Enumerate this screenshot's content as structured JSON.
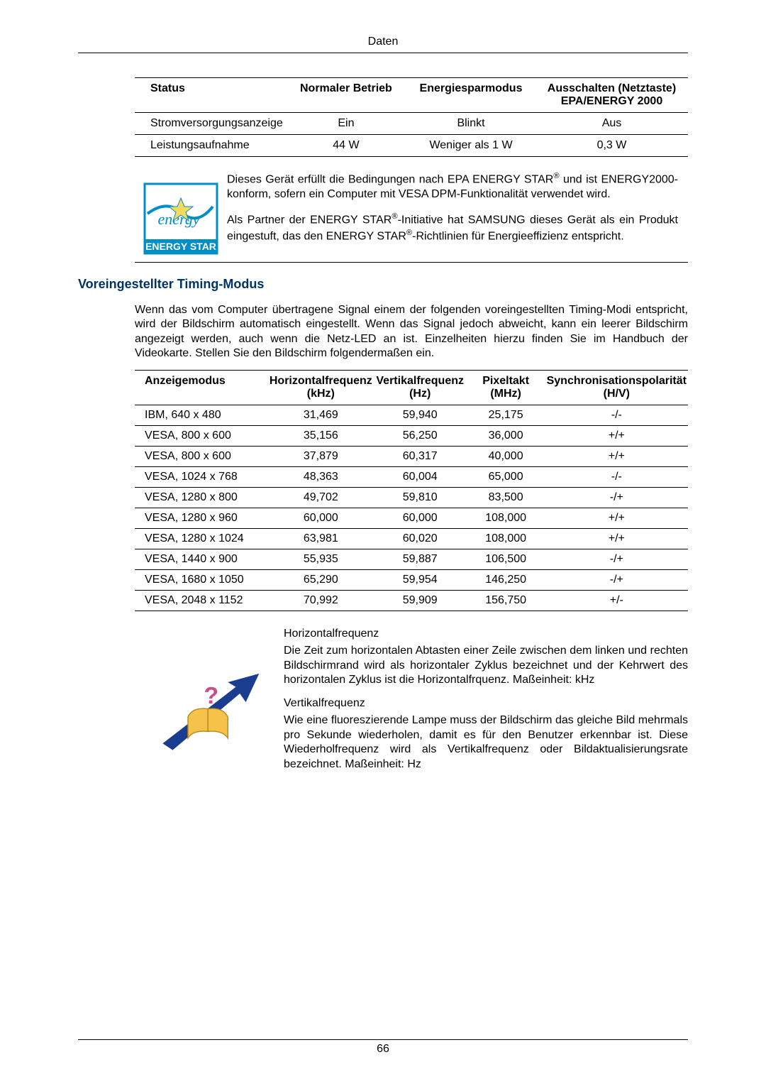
{
  "header": {
    "title": "Daten"
  },
  "status_table": {
    "headers": [
      "Status",
      "Normaler Betrieb",
      "Energiesparmodus",
      "Ausschalten (Netztaste) EPA/ENERGY 2000"
    ],
    "rows": [
      {
        "label": "Stromversorgungsanzeige",
        "normal": "Ein",
        "power_save": "Blinkt",
        "off": "Aus"
      },
      {
        "label": "Leistungsaufnahme",
        "normal": "44 W",
        "power_save": "Weniger als 1 W",
        "off": "0,3 W"
      }
    ]
  },
  "info": {
    "p1_pre": "Dieses Gerät erfüllt die Bedingungen nach EPA ENERGY STAR",
    "p1_post": " und ist ENERGY2000-konform, sofern ein Computer mit VESA DPM-Funktionalität verwendet wird.",
    "p2_pre": "Als Partner der ENERGY STAR",
    "p2_mid": "-Initiative hat SAMSUNG dieses Gerät als ein Produkt eingestuft, das den ENERGY STAR",
    "p2_post": "-Richtlinien für Energieeffizienz entspricht."
  },
  "badge": {
    "script_text": "energy",
    "block_text": "ENERGY STAR",
    "outline_color": "#008fc5",
    "text_color": "#008fc5"
  },
  "section": {
    "heading": "Voreingestellter Timing-Modus"
  },
  "intro": "Wenn das vom Computer übertragene Signal einem der folgenden voreingestellten Timing-Modi entspricht, wird der Bildschirm automatisch eingestellt. Wenn das Signal jedoch abweicht, kann ein leerer Bildschirm angezeigt werden, auch wenn die Netz-LED an ist. Einzelheiten hierzu finden Sie im Handbuch der Videokarte. Stellen Sie den Bildschirm folgendermaßen ein.",
  "timing_table": {
    "headers": [
      "Anzeigemodus",
      "Horizontalfrequenz (kHz)",
      "Vertikalfrequenz (Hz)",
      "Pixeltakt (MHz)",
      "Synchronisationspolarität (H/V)"
    ],
    "rows": [
      [
        "IBM, 640 x 480",
        "31,469",
        "59,940",
        "25,175",
        "-/-"
      ],
      [
        "VESA, 800 x 600",
        "35,156",
        "56,250",
        "36,000",
        "+/+"
      ],
      [
        "VESA, 800 x 600",
        "37,879",
        "60,317",
        "40,000",
        "+/+"
      ],
      [
        "VESA, 1024 x 768",
        "48,363",
        "60,004",
        "65,000",
        "-/-"
      ],
      [
        "VESA, 1280 x 800",
        "49,702",
        "59,810",
        "83,500",
        "-/+"
      ],
      [
        "VESA, 1280 x 960",
        "60,000",
        "60,000",
        "108,000",
        "+/+"
      ],
      [
        "VESA, 1280 x 1024",
        "63,981",
        "60,020",
        "108,000",
        "+/+"
      ],
      [
        "VESA, 1440 x 900",
        "55,935",
        "59,887",
        "106,500",
        "-/+"
      ],
      [
        "VESA, 1680 x 1050",
        "65,290",
        "59,954",
        "146,250",
        "-/+"
      ],
      [
        "VESA, 2048 x 1152",
        "70,992",
        "59,909",
        "156,750",
        "+/-"
      ]
    ]
  },
  "defs": {
    "term1": "Horizontalfrequenz",
    "def1": "Die Zeit zum horizontalen Abtasten einer Zeile zwischen dem linken und rechten Bildschirmrand wird als horizontaler Zyklus bezeichnet und der Kehrwert des horizontalen Zyklus ist die Horizontalfrquenz. Maßeinheit: kHz",
    "term2": "Vertikalfrequenz",
    "def2": "Wie eine fluoreszierende Lampe muss der Bildschirm das gleiche Bild mehrmals pro Sekunde wiederholen, damit es für den Benutzer erkennbar ist. Diese Wiederholfrequenz wird als Vertikalfrequenz oder Bildaktualisierungsrate bezeichnet. Maßeinheit: Hz"
  },
  "defs_icon": {
    "arrow_color": "#1a3d8f",
    "book_color": "#f5c24a",
    "question_color": "#d14a8a"
  },
  "footer": {
    "page_number": "66"
  }
}
